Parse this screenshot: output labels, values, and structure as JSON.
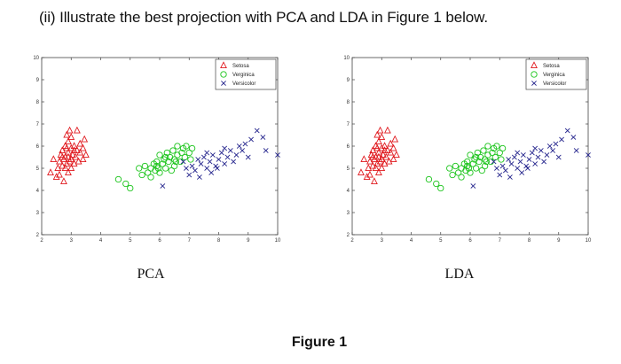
{
  "question": "(ii) Illustrate the best projection with PCA and LDA in Figure 1 below.",
  "figure_caption": "Figure 1",
  "colors": {
    "setosa": "#e0191e",
    "verginica": "#19c419",
    "versicolor": "#23238c",
    "axis": "#444444"
  },
  "chart_data": [
    {
      "type": "scatter",
      "title": "",
      "subtitle": "",
      "caption": "PCA",
      "xlabel": "",
      "ylabel": "",
      "xlim": [
        2,
        10
      ],
      "ylim": [
        2,
        10
      ],
      "xticks": [
        2,
        3,
        4,
        5,
        6,
        7,
        8,
        9,
        10
      ],
      "yticks": [
        2,
        3,
        4,
        5,
        6,
        7,
        8,
        9,
        10
      ],
      "grid": false,
      "legend_placement": "top-right",
      "series": [
        {
          "name": "Setosa",
          "marker": "triangle",
          "color": "#e0191e",
          "points": [
            [
              2.3,
              4.8
            ],
            [
              2.4,
              5.4
            ],
            [
              2.5,
              4.6
            ],
            [
              2.55,
              5.0
            ],
            [
              2.6,
              5.3
            ],
            [
              2.6,
              4.7
            ],
            [
              2.65,
              5.6
            ],
            [
              2.7,
              5.1
            ],
            [
              2.7,
              5.8
            ],
            [
              2.75,
              4.4
            ],
            [
              2.75,
              5.4
            ],
            [
              2.8,
              6.0
            ],
            [
              2.8,
              5.0
            ],
            [
              2.8,
              5.5
            ],
            [
              2.85,
              6.5
            ],
            [
              2.85,
              5.2
            ],
            [
              2.9,
              5.7
            ],
            [
              2.9,
              4.8
            ],
            [
              2.9,
              6.2
            ],
            [
              2.95,
              5.3
            ],
            [
              3.0,
              5.9
            ],
            [
              3.0,
              5.0
            ],
            [
              3.0,
              6.4
            ],
            [
              3.05,
              5.6
            ],
            [
              3.1,
              5.2
            ],
            [
              3.1,
              6.0
            ],
            [
              3.15,
              5.5
            ],
            [
              3.2,
              6.7
            ],
            [
              3.2,
              5.8
            ],
            [
              3.25,
              5.3
            ],
            [
              3.3,
              6.1
            ],
            [
              3.3,
              5.7
            ],
            [
              3.4,
              5.9
            ],
            [
              3.45,
              6.3
            ],
            [
              3.5,
              5.6
            ],
            [
              2.9,
              5.5
            ],
            [
              2.95,
              6.7
            ],
            [
              2.7,
              5.5
            ],
            [
              3.0,
              5.4
            ],
            [
              3.1,
              5.8
            ],
            [
              2.85,
              5.9
            ],
            [
              3.4,
              5.4
            ]
          ]
        },
        {
          "name": "Verginica",
          "marker": "circle",
          "color": "#19c419",
          "points": [
            [
              4.6,
              4.5
            ],
            [
              4.85,
              4.3
            ],
            [
              5.0,
              4.1
            ],
            [
              5.3,
              5.0
            ],
            [
              5.4,
              4.7
            ],
            [
              5.5,
              5.1
            ],
            [
              5.6,
              4.8
            ],
            [
              5.7,
              5.0
            ],
            [
              5.7,
              4.6
            ],
            [
              5.8,
              5.2
            ],
            [
              5.85,
              4.9
            ],
            [
              5.9,
              5.3
            ],
            [
              5.95,
              5.0
            ],
            [
              6.0,
              4.8
            ],
            [
              6.0,
              5.6
            ],
            [
              6.1,
              5.2
            ],
            [
              6.15,
              5.4
            ],
            [
              6.2,
              5.0
            ],
            [
              6.25,
              5.7
            ],
            [
              6.3,
              5.3
            ],
            [
              6.35,
              5.5
            ],
            [
              6.4,
              4.9
            ],
            [
              6.45,
              5.8
            ],
            [
              6.5,
              5.4
            ],
            [
              6.5,
              5.1
            ],
            [
              6.6,
              5.6
            ],
            [
              6.6,
              6.0
            ],
            [
              6.7,
              5.3
            ],
            [
              6.75,
              5.7
            ],
            [
              6.8,
              5.9
            ],
            [
              6.85,
              5.5
            ],
            [
              6.9,
              6.0
            ],
            [
              7.0,
              5.7
            ],
            [
              7.05,
              5.4
            ],
            [
              7.1,
              5.9
            ],
            [
              5.9,
              5.1
            ],
            [
              6.2,
              5.5
            ],
            [
              6.55,
              5.3
            ]
          ]
        },
        {
          "name": "Versicolor",
          "marker": "x",
          "color": "#23238c",
          "points": [
            [
              6.1,
              4.2
            ],
            [
              6.8,
              5.3
            ],
            [
              6.9,
              5.0
            ],
            [
              7.0,
              4.7
            ],
            [
              7.1,
              5.1
            ],
            [
              7.2,
              4.9
            ],
            [
              7.3,
              5.4
            ],
            [
              7.35,
              4.6
            ],
            [
              7.4,
              5.2
            ],
            [
              7.5,
              5.5
            ],
            [
              7.6,
              5.0
            ],
            [
              7.7,
              5.3
            ],
            [
              7.75,
              4.8
            ],
            [
              7.8,
              5.6
            ],
            [
              7.9,
              5.1
            ],
            [
              8.0,
              5.4
            ],
            [
              8.1,
              5.7
            ],
            [
              8.2,
              5.2
            ],
            [
              8.3,
              5.5
            ],
            [
              8.4,
              5.8
            ],
            [
              8.5,
              5.3
            ],
            [
              8.6,
              5.6
            ],
            [
              8.7,
              6.0
            ],
            [
              8.8,
              5.8
            ],
            [
              8.9,
              6.1
            ],
            [
              9.0,
              5.5
            ],
            [
              9.1,
              6.3
            ],
            [
              9.3,
              6.7
            ],
            [
              9.5,
              6.4
            ],
            [
              9.6,
              5.8
            ],
            [
              10.0,
              5.6
            ],
            [
              7.6,
              5.7
            ],
            [
              8.2,
              5.9
            ],
            [
              7.95,
              5.0
            ]
          ]
        }
      ]
    },
    {
      "type": "scatter",
      "title": "",
      "subtitle": "",
      "caption": "LDA",
      "xlabel": "",
      "ylabel": "",
      "xlim": [
        2,
        10
      ],
      "ylim": [
        2,
        10
      ],
      "xticks": [
        2,
        3,
        4,
        5,
        6,
        7,
        8,
        9,
        10
      ],
      "yticks": [
        2,
        3,
        4,
        5,
        6,
        7,
        8,
        9,
        10
      ],
      "grid": false,
      "legend_placement": "top-right",
      "series": [
        {
          "name": "Setosa",
          "marker": "triangle",
          "color": "#e0191e",
          "points": [
            [
              2.3,
              4.8
            ],
            [
              2.4,
              5.4
            ],
            [
              2.5,
              4.6
            ],
            [
              2.55,
              5.0
            ],
            [
              2.6,
              5.3
            ],
            [
              2.6,
              4.7
            ],
            [
              2.65,
              5.6
            ],
            [
              2.7,
              5.1
            ],
            [
              2.7,
              5.8
            ],
            [
              2.75,
              4.4
            ],
            [
              2.75,
              5.4
            ],
            [
              2.8,
              6.0
            ],
            [
              2.8,
              5.0
            ],
            [
              2.8,
              5.5
            ],
            [
              2.85,
              6.5
            ],
            [
              2.85,
              5.2
            ],
            [
              2.9,
              5.7
            ],
            [
              2.9,
              4.8
            ],
            [
              2.9,
              6.2
            ],
            [
              2.95,
              5.3
            ],
            [
              3.0,
              5.9
            ],
            [
              3.0,
              5.0
            ],
            [
              3.0,
              6.4
            ],
            [
              3.05,
              5.6
            ],
            [
              3.1,
              5.2
            ],
            [
              3.1,
              6.0
            ],
            [
              3.15,
              5.5
            ],
            [
              3.2,
              6.7
            ],
            [
              3.2,
              5.8
            ],
            [
              3.25,
              5.3
            ],
            [
              3.3,
              6.1
            ],
            [
              3.3,
              5.7
            ],
            [
              3.4,
              5.9
            ],
            [
              3.45,
              6.3
            ],
            [
              3.5,
              5.6
            ],
            [
              2.9,
              5.5
            ],
            [
              2.95,
              6.7
            ],
            [
              2.7,
              5.5
            ],
            [
              3.0,
              5.4
            ],
            [
              3.1,
              5.8
            ],
            [
              2.85,
              5.9
            ],
            [
              3.4,
              5.4
            ]
          ]
        },
        {
          "name": "Verginica",
          "marker": "circle",
          "color": "#19c419",
          "points": [
            [
              4.6,
              4.5
            ],
            [
              4.85,
              4.3
            ],
            [
              5.0,
              4.1
            ],
            [
              5.3,
              5.0
            ],
            [
              5.4,
              4.7
            ],
            [
              5.5,
              5.1
            ],
            [
              5.6,
              4.8
            ],
            [
              5.7,
              5.0
            ],
            [
              5.7,
              4.6
            ],
            [
              5.8,
              5.2
            ],
            [
              5.85,
              4.9
            ],
            [
              5.9,
              5.3
            ],
            [
              5.95,
              5.0
            ],
            [
              6.0,
              4.8
            ],
            [
              6.0,
              5.6
            ],
            [
              6.1,
              5.2
            ],
            [
              6.15,
              5.4
            ],
            [
              6.2,
              5.0
            ],
            [
              6.25,
              5.7
            ],
            [
              6.3,
              5.3
            ],
            [
              6.35,
              5.5
            ],
            [
              6.4,
              4.9
            ],
            [
              6.45,
              5.8
            ],
            [
              6.5,
              5.4
            ],
            [
              6.5,
              5.1
            ],
            [
              6.6,
              5.6
            ],
            [
              6.6,
              6.0
            ],
            [
              6.7,
              5.3
            ],
            [
              6.75,
              5.7
            ],
            [
              6.8,
              5.9
            ],
            [
              6.85,
              5.5
            ],
            [
              6.9,
              6.0
            ],
            [
              7.0,
              5.7
            ],
            [
              7.05,
              5.4
            ],
            [
              7.1,
              5.9
            ],
            [
              5.9,
              5.1
            ],
            [
              6.2,
              5.5
            ],
            [
              6.55,
              5.3
            ]
          ]
        },
        {
          "name": "Versicolor",
          "marker": "x",
          "color": "#23238c",
          "points": [
            [
              6.1,
              4.2
            ],
            [
              6.8,
              5.3
            ],
            [
              6.9,
              5.0
            ],
            [
              7.0,
              4.7
            ],
            [
              7.1,
              5.1
            ],
            [
              7.2,
              4.9
            ],
            [
              7.3,
              5.4
            ],
            [
              7.35,
              4.6
            ],
            [
              7.4,
              5.2
            ],
            [
              7.5,
              5.5
            ],
            [
              7.6,
              5.0
            ],
            [
              7.7,
              5.3
            ],
            [
              7.75,
              4.8
            ],
            [
              7.8,
              5.6
            ],
            [
              7.9,
              5.1
            ],
            [
              8.0,
              5.4
            ],
            [
              8.1,
              5.7
            ],
            [
              8.2,
              5.2
            ],
            [
              8.3,
              5.5
            ],
            [
              8.4,
              5.8
            ],
            [
              8.5,
              5.3
            ],
            [
              8.6,
              5.6
            ],
            [
              8.7,
              6.0
            ],
            [
              8.8,
              5.8
            ],
            [
              8.9,
              6.1
            ],
            [
              9.0,
              5.5
            ],
            [
              9.1,
              6.3
            ],
            [
              9.3,
              6.7
            ],
            [
              9.5,
              6.4
            ],
            [
              9.6,
              5.8
            ],
            [
              10.0,
              5.6
            ],
            [
              7.6,
              5.7
            ],
            [
              8.2,
              5.9
            ],
            [
              7.95,
              5.0
            ]
          ]
        }
      ]
    }
  ]
}
